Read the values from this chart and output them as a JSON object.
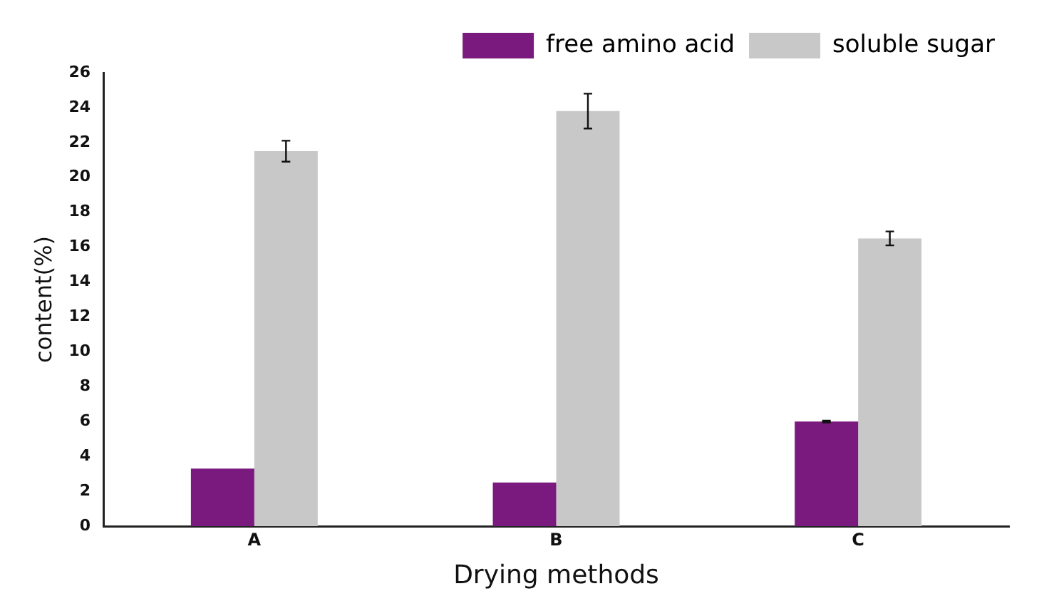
{
  "chart_data": {
    "type": "bar",
    "xlabel": "Drying methods",
    "ylabel": "content(%)",
    "categories": [
      "A",
      "B",
      "C"
    ],
    "series": [
      {
        "name": "free amino acid",
        "color": "#7b1a7e",
        "values": [
          3.3,
          2.5,
          6.0
        ],
        "errors": [
          null,
          null,
          0.05
        ]
      },
      {
        "name": "soluble sugar",
        "color": "#c8c8c8",
        "values": [
          21.5,
          23.8,
          16.5
        ],
        "errors": [
          0.6,
          1.0,
          0.4
        ]
      }
    ],
    "ylim": [
      0,
      26
    ],
    "yticks": [
      0,
      2,
      4,
      6,
      8,
      10,
      12,
      14,
      16,
      18,
      20,
      22,
      24,
      26
    ],
    "grid": false,
    "legend": "top right"
  }
}
